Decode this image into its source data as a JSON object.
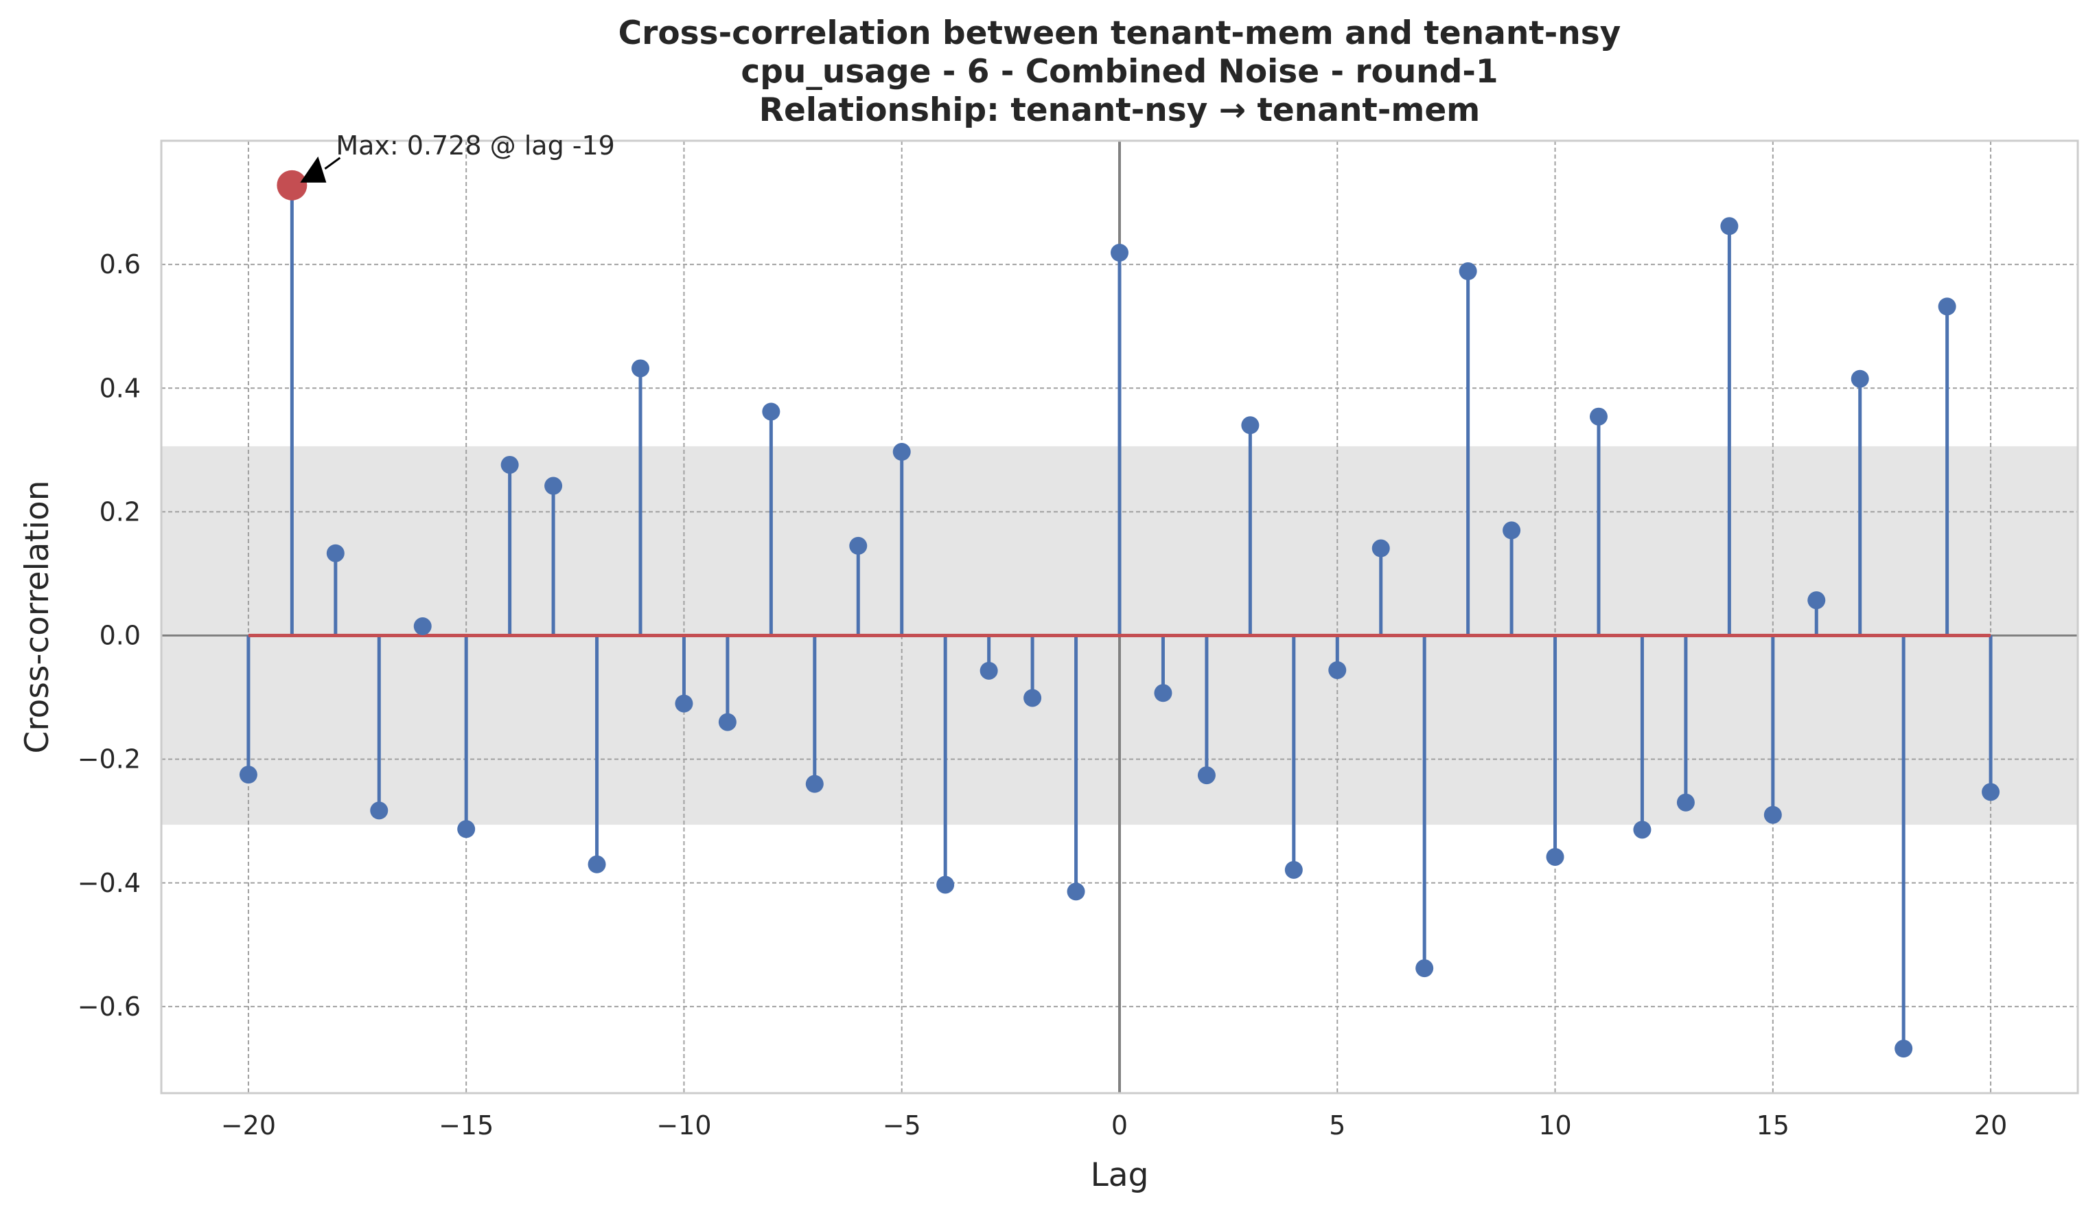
{
  "chart_data": {
    "type": "stem",
    "title_lines": [
      "Cross-correlation between tenant-mem and tenant-nsy",
      "cpu_usage - 6 - Combined Noise - round-1",
      "Relationship: tenant-nsy → tenant-mem"
    ],
    "xlabel": "Lag",
    "ylabel": "Cross-correlation",
    "xlim": [
      -22,
      22
    ],
    "ylim": [
      -0.74,
      0.8
    ],
    "xticks": [
      -20,
      -15,
      -10,
      -5,
      0,
      5,
      10,
      15,
      20
    ],
    "xtick_labels": [
      "−20",
      "−15",
      "−10",
      "−5",
      "0",
      "5",
      "10",
      "15",
      "20"
    ],
    "yticks": [
      -0.6,
      -0.4,
      -0.2,
      0.0,
      0.2,
      0.4,
      0.6
    ],
    "ytick_labels": [
      "−0.6",
      "−0.4",
      "−0.2",
      "0.0",
      "0.2",
      "0.4",
      "0.6"
    ],
    "grid": true,
    "confidence_band": [
      -0.306,
      0.306
    ],
    "baseline": 0,
    "lags": [
      -20,
      -19,
      -18,
      -17,
      -16,
      -15,
      -14,
      -13,
      -12,
      -11,
      -10,
      -9,
      -8,
      -7,
      -6,
      -5,
      -4,
      -3,
      -2,
      -1,
      0,
      1,
      2,
      3,
      4,
      5,
      6,
      7,
      8,
      9,
      10,
      11,
      12,
      13,
      14,
      15,
      16,
      17,
      18,
      19,
      20
    ],
    "values": [
      -0.225,
      0.728,
      0.133,
      -0.283,
      0.015,
      -0.313,
      0.276,
      0.242,
      -0.37,
      0.432,
      -0.11,
      -0.14,
      0.362,
      -0.24,
      0.145,
      0.297,
      -0.403,
      -0.057,
      -0.101,
      -0.414,
      0.619,
      -0.093,
      -0.226,
      0.34,
      -0.379,
      -0.056,
      0.141,
      -0.538,
      0.589,
      0.17,
      -0.358,
      0.354,
      -0.314,
      -0.27,
      0.662,
      -0.29,
      0.057,
      0.415,
      -0.668,
      0.532,
      -0.253
    ],
    "max_point": {
      "lag": -19,
      "value": 0.728
    },
    "annotation": "Max: 0.728 @ lag -19",
    "colors": {
      "stem": "#4c72b0",
      "max_marker": "#c44e52",
      "baseline": "#c44e52",
      "band": "#e5e5e5",
      "grid": "#a0a0a0",
      "zero_vline": "#808080",
      "axes_edge": "#cccccc"
    }
  }
}
